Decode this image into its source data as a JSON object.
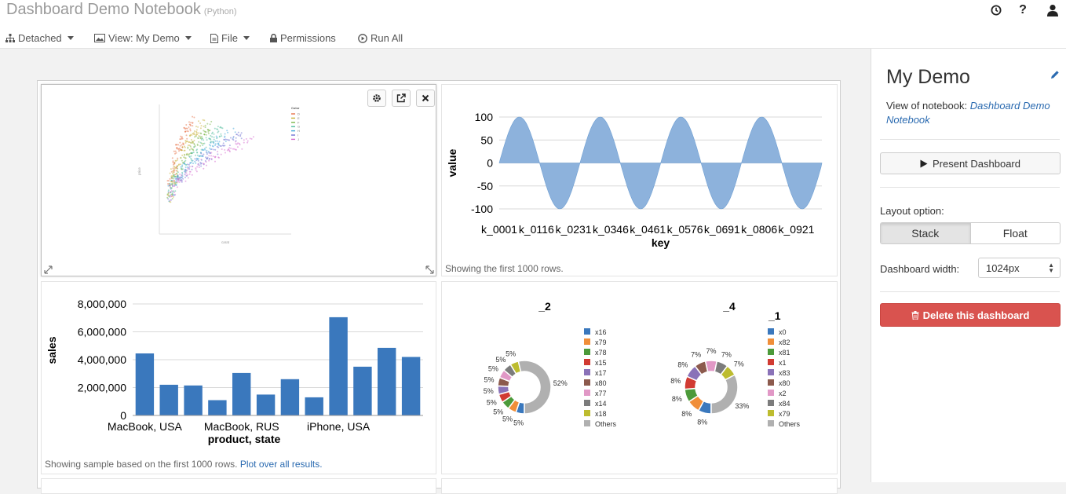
{
  "header": {
    "title": "Dashboard Demo Notebook",
    "language": "(Python)",
    "icons": [
      "clock-icon",
      "help-icon",
      "user-icon"
    ]
  },
  "menu": {
    "detached": "Detached",
    "view": "View: My Demo",
    "file": "File",
    "permissions": "Permissions",
    "run_all": "Run All"
  },
  "sidebar": {
    "title": "My Demo",
    "view_of_label": "View of notebook:",
    "notebook_link": "Dashboard Demo Notebook",
    "present_button": "Present Dashboard",
    "layout_label": "Layout option:",
    "layout_options": [
      "Stack",
      "Float"
    ],
    "layout_selected": "Stack",
    "width_label": "Dashboard width:",
    "width_value": "1024px",
    "delete_button": "Delete this dashboard"
  },
  "cells": {
    "line_caption": "Showing the first 1000 rows.",
    "bar_caption": "Showing sample based on the first 1000 rows.",
    "bar_caption_link": "Plot over all results."
  },
  "colors": {
    "bar_blue": "#3a78bd",
    "area_blue": "#8db2dc",
    "delete_red": "#d9534f",
    "link_blue": "#2a6ab0"
  },
  "chart_data": [
    {
      "type": "scatter",
      "xlabel": "carat",
      "ylabel": "price",
      "legend_title": "Color",
      "legend": [
        "D",
        "E",
        "F",
        "G",
        "H",
        "I",
        "J"
      ],
      "colors": [
        "#e8734a",
        "#c9b23c",
        "#7ab648",
        "#4dbb9c",
        "#3fa6d9",
        "#6f72d4",
        "#d56ed0"
      ]
    },
    {
      "type": "area",
      "xlabel": "key",
      "ylabel": "value",
      "ylim": [
        -100,
        100
      ],
      "y_ticks": [
        100,
        50,
        0,
        -50,
        -100
      ],
      "x_ticks": [
        "k_0001",
        "k_0116",
        "k_0231",
        "k_0346",
        "k_0461",
        "k_0576",
        "k_0691",
        "k_0806",
        "k_0921"
      ],
      "x_range": [
        1,
        1000
      ],
      "period": 250,
      "amplitude": 100
    },
    {
      "type": "bar",
      "xlabel": "product, state",
      "ylabel": "sales",
      "ylim": [
        0,
        8000000
      ],
      "y_ticks": [
        "0",
        "2,000,000",
        "4,000,000",
        "6,000,000",
        "8,000,000"
      ],
      "x_tick_labels": [
        "MacBook, USA",
        "",
        "",
        "",
        "MacBook, RUS",
        "",
        "",
        "",
        "iPhone, USA",
        "",
        "",
        ""
      ],
      "values": [
        4450000,
        2200000,
        2150000,
        1100000,
        3050000,
        1500000,
        2600000,
        1300000,
        7050000,
        3500000,
        4850000,
        4200000
      ]
    },
    {
      "type": "pie",
      "title": "_2",
      "labels": [
        "x16",
        "x79",
        "x78",
        "x15",
        "x17",
        "x80",
        "x77",
        "x14",
        "x18",
        "Others"
      ],
      "values": [
        5,
        5,
        5,
        5,
        5,
        5,
        5,
        5,
        5,
        52
      ],
      "value_labels": [
        "5%",
        "5%",
        "5%",
        "5%",
        "5%",
        "5%",
        "5%",
        "5%",
        "5%",
        "52%"
      ]
    },
    {
      "type": "pie",
      "title": "_4",
      "legend_title": "_1",
      "labels": [
        "x0",
        "x82",
        "x81",
        "x1",
        "x83",
        "x80",
        "x2",
        "x84",
        "x79",
        "Others"
      ],
      "values": [
        8,
        8,
        8,
        8,
        8,
        7,
        7,
        7,
        7,
        33
      ],
      "value_labels": [
        "8%",
        "8%",
        "8%",
        "8%",
        "8%",
        "7%",
        "7%",
        "7%",
        "7%",
        "33%"
      ]
    }
  ]
}
